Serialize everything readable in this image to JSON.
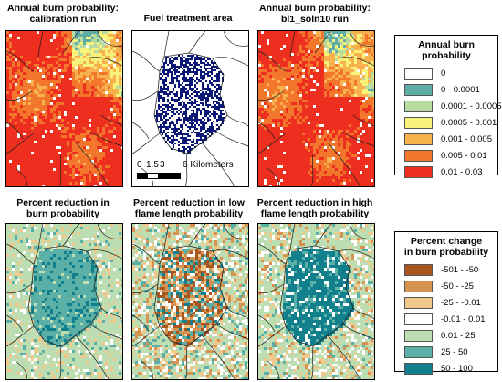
{
  "panels": {
    "calibration": {
      "title_line1": "Annual burn probability:",
      "title_line2": "calibration run"
    },
    "fuel": {
      "title_line1": "Fuel treatment area",
      "title_line2": ""
    },
    "bl1": {
      "title_line1": "Annual burn probability:",
      "title_line2": "bl1_soln10 run"
    },
    "reduction_bp": {
      "title_line1": "Percent reduction in",
      "title_line2": "burn probability"
    },
    "reduction_low": {
      "title_line1": "Percent reduction in low",
      "title_line2": "flame length probability"
    },
    "reduction_high": {
      "title_line1": "Percent reduction in high",
      "title_line2": "flame length probability"
    }
  },
  "scalebar": {
    "labels": [
      "0",
      "1.5",
      "3",
      "6 Kilometers"
    ]
  },
  "legend_burn": {
    "title_line1": "Annual burn",
    "title_line2": "probability",
    "items": [
      {
        "label": "0",
        "color": "#ffffff"
      },
      {
        "label": "0 - 0.0001",
        "color": "#5fada6"
      },
      {
        "label": "0.0001 - 0.0005",
        "color": "#b9dba0"
      },
      {
        "label": "0.0005 - 0.001",
        "color": "#f6f27a"
      },
      {
        "label": "0.001 - 0.005",
        "color": "#f7b24d"
      },
      {
        "label": "0.005 - 0.01",
        "color": "#f3762d"
      },
      {
        "label": "0.01 - 0.03",
        "color": "#ee2e1f"
      }
    ]
  },
  "legend_change": {
    "title_line1": "Percent change",
    "title_line2": "in burn probability",
    "items": [
      {
        "label": "-501 - -50",
        "color": "#a8561f"
      },
      {
        "label": "-50 - -25",
        "color": "#d69250"
      },
      {
        "label": "-25 - -0.01",
        "color": "#efc98c"
      },
      {
        "label": "-0.01 - 0.01",
        "color": "#ffffff"
      },
      {
        "label": "0.01 - 25",
        "color": "#bcdeb2"
      },
      {
        "label": "25 - 50",
        "color": "#5aafa7"
      },
      {
        "label": "50 - 100",
        "color": "#12808c"
      }
    ]
  }
}
